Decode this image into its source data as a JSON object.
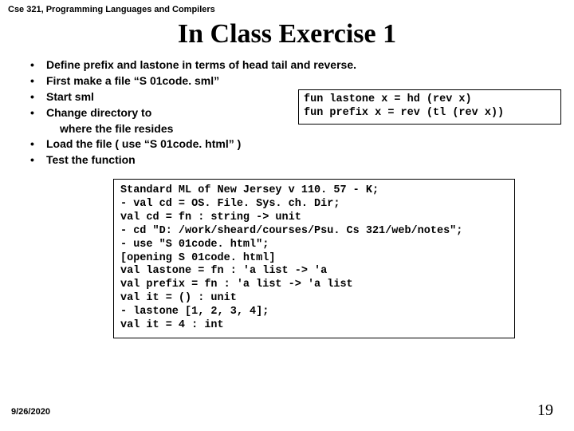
{
  "header": "Cse 321, Programming Languages and Compilers",
  "title": "In Class Exercise 1",
  "bullets": [
    "Define prefix and lastone in terms of head tail and reverse.",
    "First make a file “S 01code. sml”",
    "Start sml",
    "Change directory to",
    "where the file resides",
    "Load the file ( use “S 01code. html” )",
    "Test the function"
  ],
  "code1": "fun lastone x = hd (rev x)\nfun prefix x = rev (tl (rev x))",
  "code2": "Standard ML of New Jersey v 110. 57 - K;\n- val cd = OS. File. Sys. ch. Dir;\nval cd = fn : string -> unit\n- cd \"D: /work/sheard/courses/Psu. Cs 321/web/notes\";\n- use \"S 01code. html\";\n[opening S 01code. html]\nval lastone = fn : 'a list -> 'a\nval prefix = fn : 'a list -> 'a list\nval it = () : unit\n- lastone [1, 2, 3, 4];\nval it = 4 : int",
  "footer_date": "9/26/2020",
  "footer_page": "19"
}
